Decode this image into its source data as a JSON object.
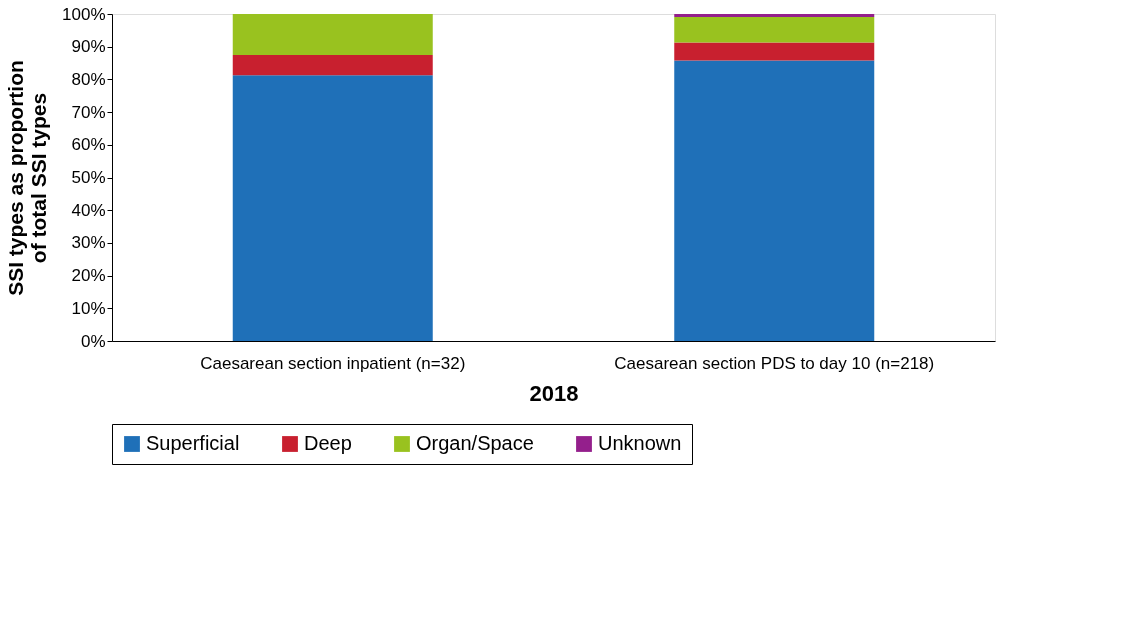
{
  "chart_data": {
    "type": "bar",
    "stacked": true,
    "xlabel": "2018",
    "ylabel": "SSI types as proportion of total SSI types",
    "categories": [
      "Caesarean section inpatient (n=32)",
      "Caesarean section PDS to day 10 (n=218)"
    ],
    "series": [
      {
        "name": "Superficial",
        "color": "#1f70b8",
        "values": [
          81.3,
          85.8
        ]
      },
      {
        "name": "Deep",
        "color": "#c8202f",
        "values": [
          6.2,
          5.5
        ]
      },
      {
        "name": "Organ/Space",
        "color": "#99c21f",
        "values": [
          12.5,
          7.8
        ]
      },
      {
        "name": "Unknown",
        "color": "#941f8c",
        "values": [
          0,
          0.9
        ]
      }
    ],
    "ylim": [
      0,
      100
    ],
    "yticks": [
      {
        "value": 0,
        "label": "0%"
      },
      {
        "value": 10,
        "label": "10%"
      },
      {
        "value": 20,
        "label": "20%"
      },
      {
        "value": 30,
        "label": "30%"
      },
      {
        "value": 40,
        "label": "40%"
      },
      {
        "value": 50,
        "label": "50%"
      },
      {
        "value": 60,
        "label": "60%"
      },
      {
        "value": 70,
        "label": "70%"
      },
      {
        "value": 80,
        "label": "80%"
      },
      {
        "value": 90,
        "label": "90%"
      },
      {
        "value": 100,
        "label": "100%"
      }
    ],
    "grid": false,
    "legend": "bottom"
  }
}
